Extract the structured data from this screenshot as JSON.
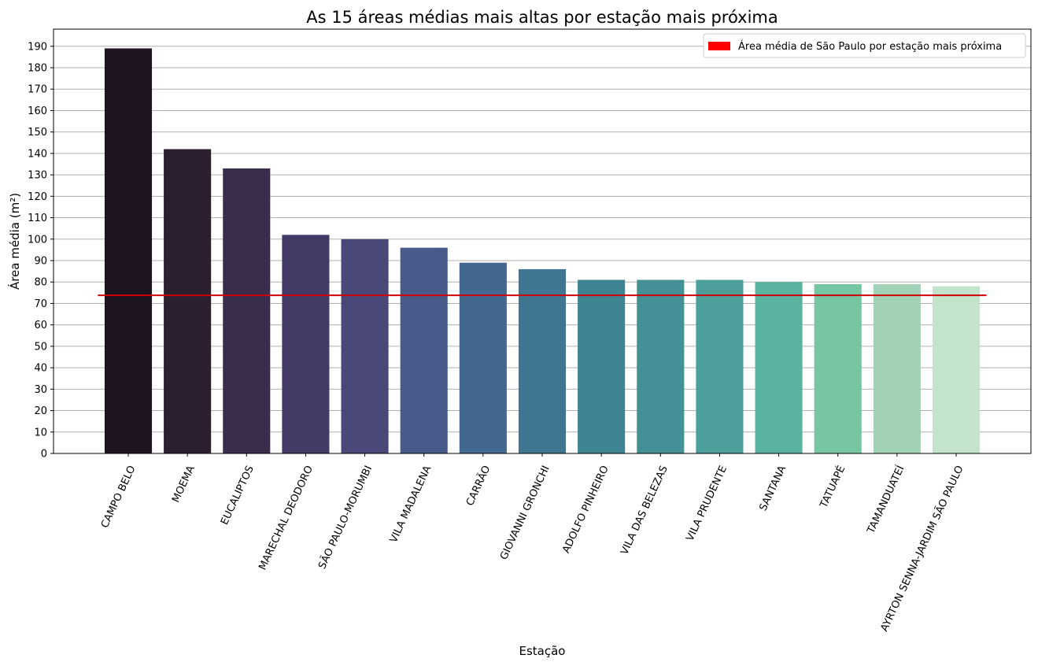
{
  "chart_data": {
    "type": "bar",
    "title": "As 15 áreas médias mais altas por estação mais próxima",
    "xlabel": "Estação",
    "ylabel": "Área média (m²)",
    "ylim": [
      0,
      198
    ],
    "yticks": [
      0,
      10,
      20,
      30,
      40,
      50,
      60,
      70,
      80,
      90,
      100,
      110,
      120,
      130,
      140,
      150,
      160,
      170,
      180,
      190
    ],
    "grid": "y",
    "categories": [
      "CAMPO BELO",
      "MOEMA",
      "EUCALIPTOS",
      "MARECHAL DEODORO",
      "SÃO PAULO-MORUMBI",
      "VILA MADALENA",
      "CARRÃO",
      "GIOVANNI GRONCHI",
      "ADOLFO PINHEIRO",
      "VILA DAS BELEZAS",
      "VILA PRUDENTE",
      "SANTANA",
      "TATUAPÉ",
      "TAMANDUATEÍ",
      "AYRTON SENNA-JARDIM SÃO PAULO"
    ],
    "values": [
      189,
      142,
      133,
      102,
      100,
      96,
      89,
      86,
      81,
      81,
      81,
      80,
      79,
      79,
      78
    ],
    "bar_colors": [
      "#1e141f",
      "#2b1f30",
      "#392d4b",
      "#433a65",
      "#4a4878",
      "#475a8a",
      "#426890",
      "#417693",
      "#3f8493",
      "#439096",
      "#4c9f9b",
      "#59b3a0",
      "#76c6a2",
      "#a1d2b5",
      "#c3e3cb"
    ],
    "reference_line": {
      "value": 73.8,
      "color": "#d00000",
      "label": "Área média de São Paulo por estação mais próxima"
    },
    "legend": {
      "placement": "top-right",
      "label": "Área média de São Paulo por estação mais próxima",
      "color": "#ff0000"
    }
  }
}
